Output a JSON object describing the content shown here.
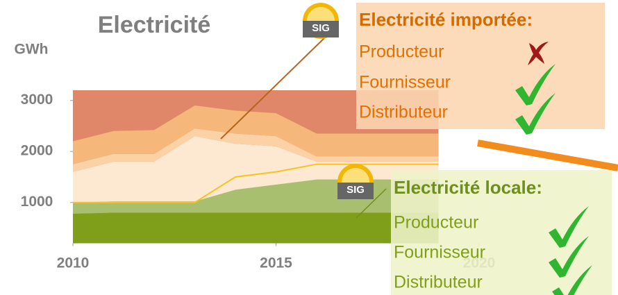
{
  "chart_data": {
    "type": "area",
    "title": "Electricité",
    "y_label": "GWh",
    "x": [
      2010,
      2011,
      2012,
      2013,
      2014,
      2015,
      2016,
      2017,
      2018,
      2019
    ],
    "xlim": [
      2010,
      2020
    ],
    "xticks": [
      2010,
      2015,
      2020
    ],
    "ylim": [
      200,
      3200
    ],
    "yticks": [
      1000,
      2000,
      3000
    ],
    "background_color": "#e0876a",
    "series": [
      {
        "color": "#7f9f1a",
        "values": [
          780,
          800,
          800,
          800,
          800,
          800,
          800,
          800,
          800,
          800
        ]
      },
      {
        "color": "#a9bf70",
        "values": [
          220,
          220,
          220,
          220,
          450,
          550,
          650,
          650,
          650,
          650
        ]
      },
      {
        "color": "#fde8d2",
        "values": [
          600,
          780,
          780,
          1280,
          900,
          750,
          350,
          350,
          350,
          350
        ]
      },
      {
        "color": "#fbd2a6",
        "values": [
          150,
          150,
          150,
          150,
          200,
          200,
          100,
          100,
          100,
          100
        ]
      },
      {
        "color": "#f6b77a",
        "values": [
          450,
          450,
          470,
          450,
          450,
          450,
          450,
          450,
          450,
          450
        ]
      }
    ],
    "lines": [
      {
        "color": "#f6c21c",
        "values": [
          1000,
          1000,
          1000,
          1000,
          1500,
          1600,
          1750,
          1750,
          1750,
          1750
        ]
      }
    ],
    "annotations": {
      "logo_text": "SIG",
      "imported": {
        "title": "Electricité importée:",
        "items": [
          "Producteur",
          "Fournisseur",
          "Distributeur"
        ]
      },
      "local": {
        "title": "Electricité locale:",
        "items": [
          "Producteur",
          "Fournisseur",
          "Distributeur"
        ]
      }
    }
  }
}
